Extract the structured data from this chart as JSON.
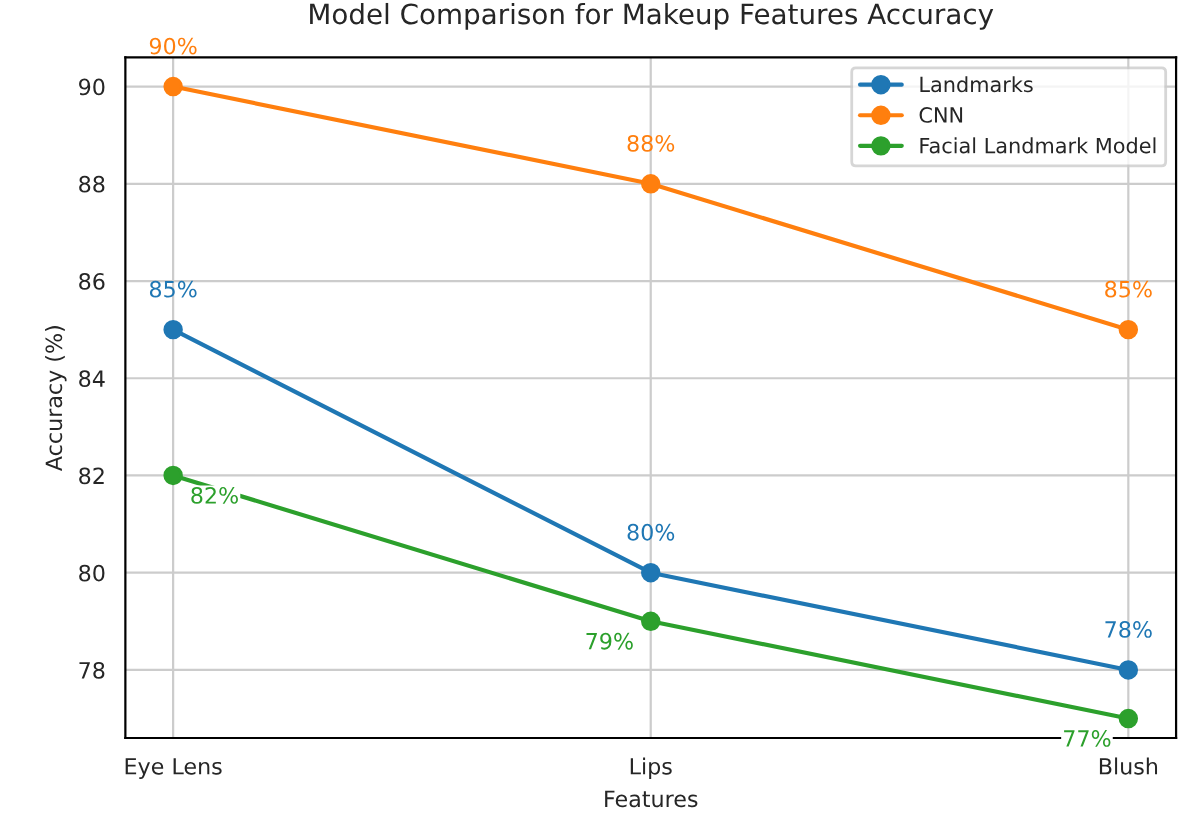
{
  "chart_data": {
    "type": "line",
    "title": "Model Comparison for Makeup Features Accuracy",
    "xlabel": "Features",
    "ylabel": "Accuracy (%)",
    "categories": [
      "Eye Lens",
      "Lips",
      "Blush"
    ],
    "series": [
      {
        "name": "Landmarks",
        "color": "#1f77b4",
        "values": [
          85,
          80,
          78
        ],
        "value_labels": [
          "85%",
          "80%",
          "78%"
        ]
      },
      {
        "name": "CNN",
        "color": "#ff7f0e",
        "values": [
          90,
          88,
          85
        ],
        "value_labels": [
          "90%",
          "88%",
          "85%"
        ]
      },
      {
        "name": "Facial Landmark Model",
        "color": "#2ca02c",
        "values": [
          82,
          79,
          77
        ],
        "value_labels": [
          "82%",
          "79%",
          "77%"
        ]
      }
    ],
    "ylim": [
      76.6,
      90.6
    ],
    "yticks": [
      78,
      80,
      82,
      84,
      86,
      88,
      90
    ],
    "grid": true,
    "legend": "top right",
    "marker": "circle",
    "line_style": "solid"
  }
}
